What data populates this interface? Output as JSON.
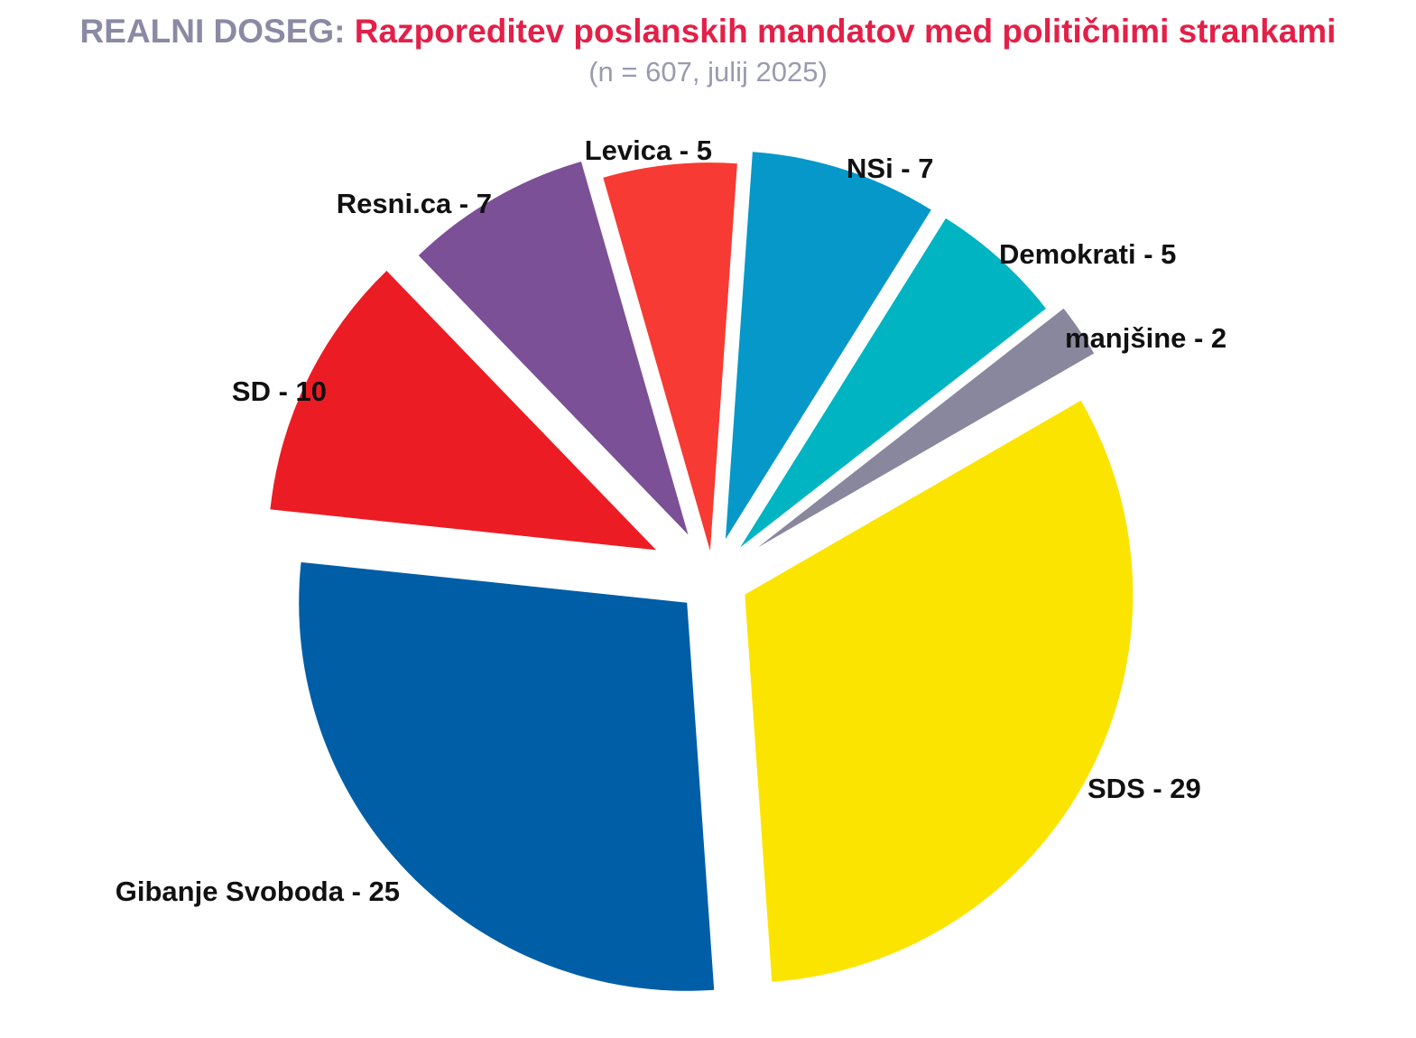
{
  "header": {
    "title_prefix": "REALNI DOSEG:",
    "title_main": "Razporeditev poslanskih mandatov med političnimi strankami",
    "subtitle": "(n = 607, julij 2025)"
  },
  "chart_data": {
    "type": "pie",
    "exploded": true,
    "slices": [
      {
        "name": "SDS",
        "value": 29,
        "label": "SDS - 29",
        "color": "#fbe400"
      },
      {
        "name": "Gibanje Svoboda",
        "value": 25,
        "label": "Gibanje Svoboda - 25",
        "color": "#005ea6"
      },
      {
        "name": "SD",
        "value": 10,
        "label": "SD - 10",
        "color": "#ec1c24"
      },
      {
        "name": "Resni.ca",
        "value": 7,
        "label": "Resni.ca - 7",
        "color": "#7b5097"
      },
      {
        "name": "Levica",
        "value": 5,
        "label": "Levica - 5",
        "color": "#f73a33"
      },
      {
        "name": "NSi",
        "value": 7,
        "label": "NSi - 7",
        "color": "#0598c9"
      },
      {
        "name": "Demokrati",
        "value": 5,
        "label": "Demokrati - 5",
        "color": "#00b4c1"
      },
      {
        "name": "manjšine",
        "value": 2,
        "label": "manjšine - 2",
        "color": "#88879e"
      }
    ]
  }
}
